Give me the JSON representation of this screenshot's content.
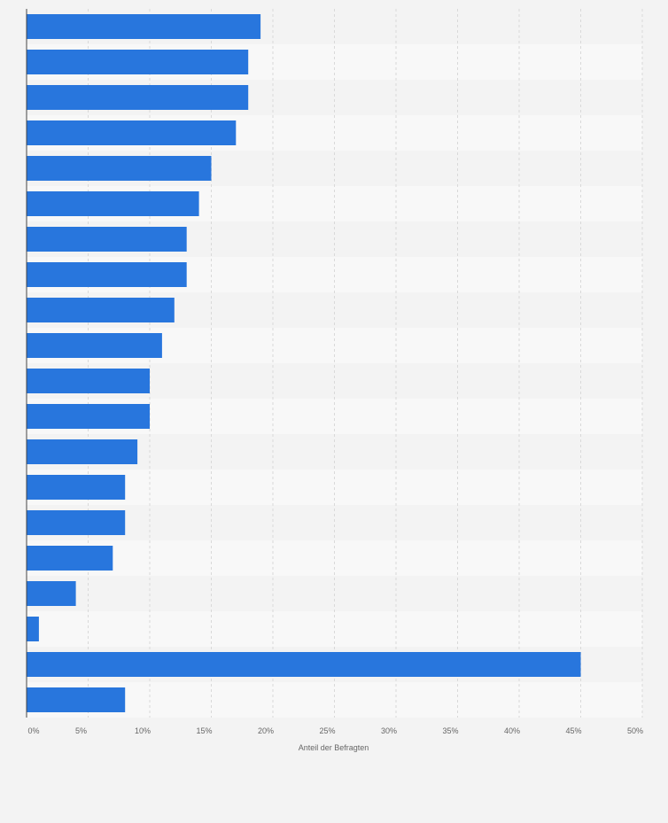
{
  "chart_data": {
    "type": "bar",
    "orientation": "horizontal",
    "categories": [
      "",
      "",
      "",
      "",
      "",
      "",
      "",
      "",
      "",
      "",
      "",
      "",
      "",
      "",
      "",
      "",
      "",
      "",
      "",
      ""
    ],
    "values": [
      19,
      18,
      18,
      17,
      15,
      14,
      13,
      13,
      12,
      11,
      10,
      10,
      9,
      8,
      8,
      7,
      4,
      1,
      45,
      8
    ],
    "xlabel": "Anteil der Befragten",
    "ylabel": "",
    "xlim": [
      0,
      50
    ],
    "xticks": [
      "0%",
      "5%",
      "10%",
      "15%",
      "20%",
      "25%",
      "30%",
      "35%",
      "40%",
      "45%",
      "50%"
    ],
    "grid": true,
    "legend": "none",
    "colors": {
      "bar": "#2876dd",
      "row_band_dark": "#f3f3f3",
      "row_band_light": "#f8f8f8",
      "gridline": "#d9d9d9",
      "axis": "#444444",
      "text": "#666666",
      "page_background": "#f3f3f3"
    }
  }
}
